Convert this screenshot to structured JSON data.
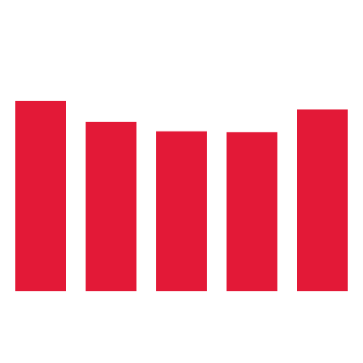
{
  "chart_data": {
    "type": "bar",
    "categories": [
      "",
      "",
      "",
      "",
      ""
    ],
    "values": [
      100,
      89,
      84,
      83.5,
      95.5
    ],
    "title": "",
    "xlabel": "",
    "ylabel": "",
    "ylim": [
      0,
      100
    ],
    "grid": false,
    "legend": "none",
    "color": "#e31937"
  }
}
